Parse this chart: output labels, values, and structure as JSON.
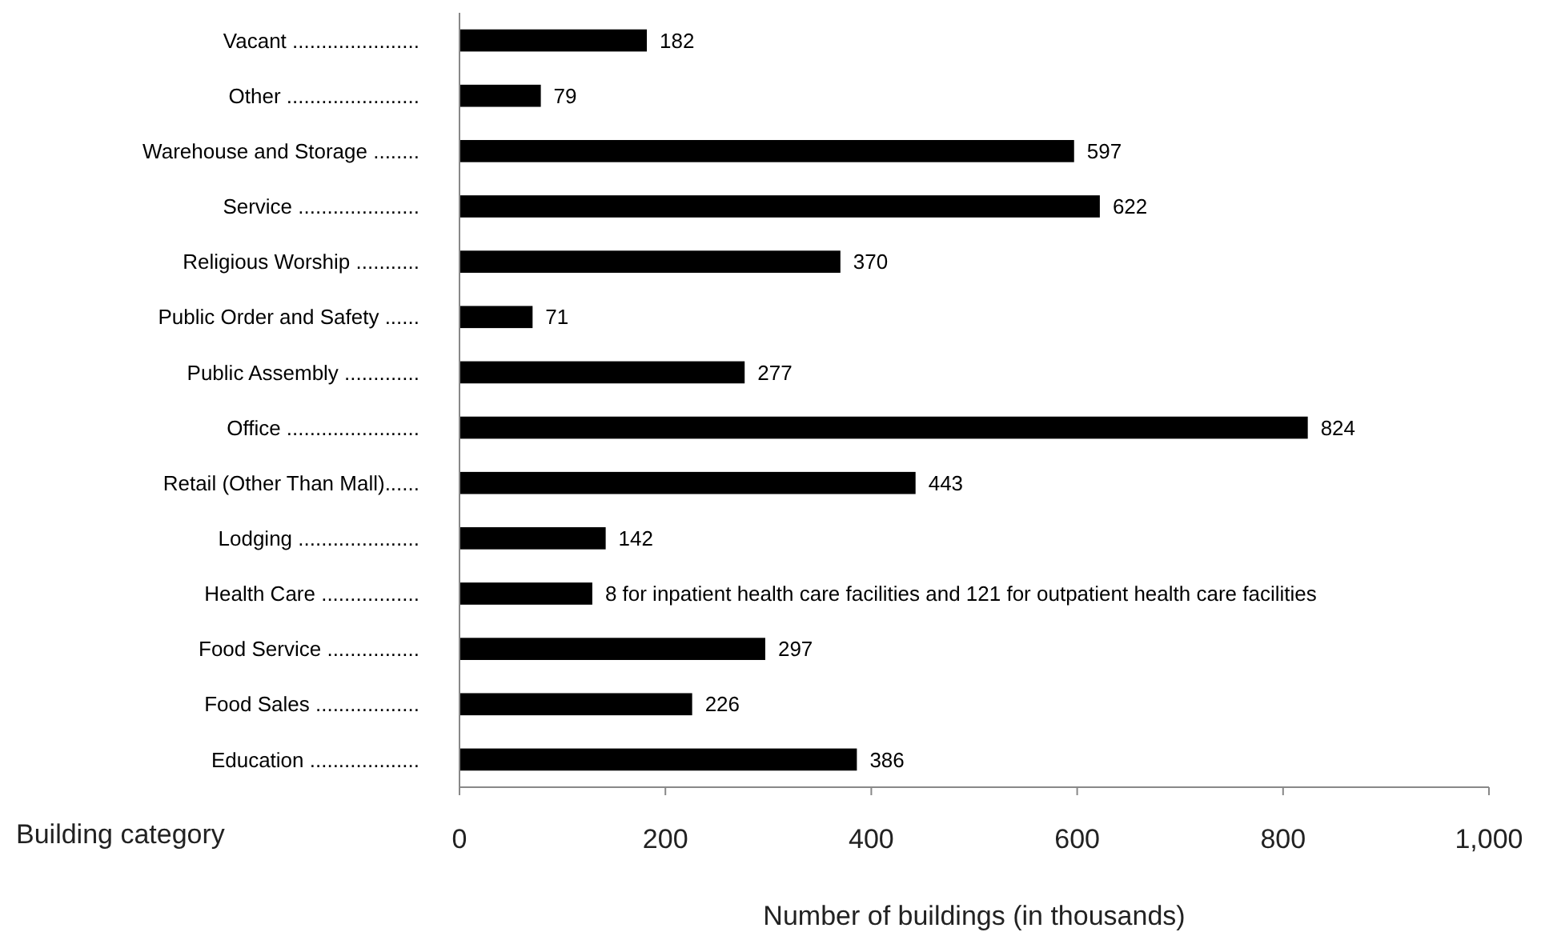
{
  "chart_data": {
    "type": "bar",
    "orientation": "horizontal",
    "xlabel": "Number of buildings (in thousands)",
    "ylabel": "Building category",
    "categories": [
      "Vacant ......................",
      "Other .......................",
      "Warehouse and Storage ........",
      "Service .....................",
      "Religious Worship ...........",
      "Public Order and Safety ......",
      "Public Assembly .............",
      "Office .......................",
      "Retail (Other Than Mall)......",
      "Lodging .....................",
      "Health Care .................",
      "Food Service ................",
      "Food Sales ..................",
      "Education ..................."
    ],
    "values": [
      182,
      79,
      597,
      622,
      370,
      71,
      277,
      824,
      443,
      142,
      129,
      297,
      226,
      386
    ],
    "value_labels": [
      "182",
      "79",
      "597",
      "622",
      "370",
      "71",
      "277",
      "824",
      "443",
      "142",
      null,
      "297",
      "226",
      "386"
    ],
    "color": "#000000",
    "xlim": [
      0,
      1000
    ],
    "xticks": [
      0,
      200,
      400,
      600,
      800,
      {
        "value": 1000,
        "label": "1,000"
      }
    ],
    "grid": false,
    "annotations": [
      {
        "text": "8 for inpatient health care facilities and 121 for outpatient health care facilities",
        "x": 129,
        "y": "Health Care ................."
      }
    ]
  }
}
